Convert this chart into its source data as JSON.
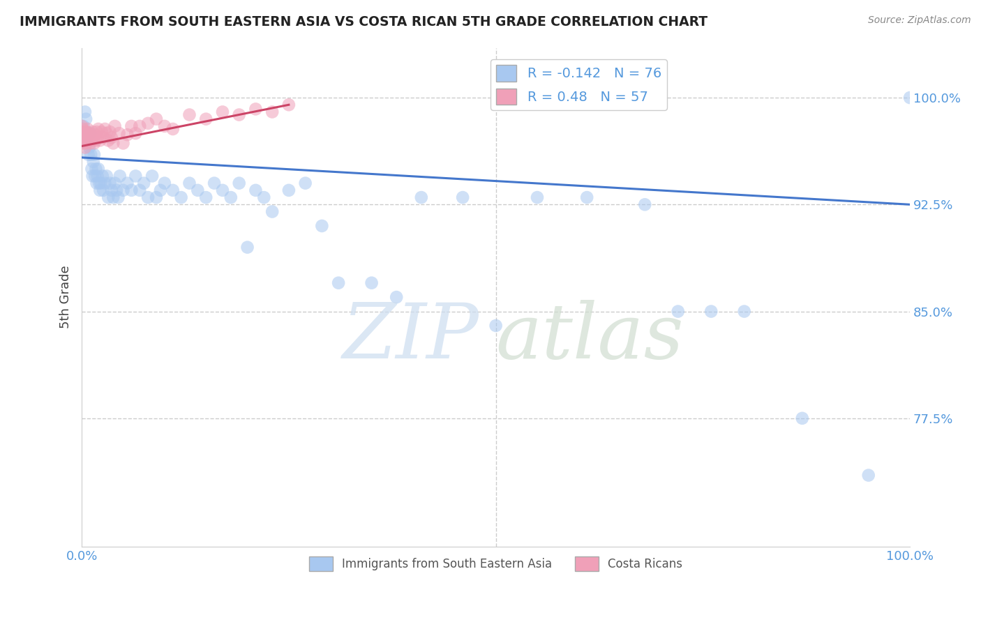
{
  "title": "IMMIGRANTS FROM SOUTH EASTERN ASIA VS COSTA RICAN 5TH GRADE CORRELATION CHART",
  "source": "Source: ZipAtlas.com",
  "ylabel": "5th Grade",
  "legend_blue_label": "Immigrants from South Eastern Asia",
  "legend_pink_label": "Costa Ricans",
  "R_blue": -0.142,
  "N_blue": 76,
  "R_pink": 0.48,
  "N_pink": 57,
  "blue_color": "#a8c8f0",
  "pink_color": "#f0a0b8",
  "blue_line_color": "#4477cc",
  "pink_line_color": "#cc4466",
  "tick_color": "#5599dd",
  "grid_color": "#cccccc",
  "xlim": [
    0.0,
    1.0
  ],
  "ylim": [
    0.685,
    1.035
  ],
  "ytick_vals": [
    0.775,
    0.85,
    0.925,
    1.0
  ],
  "ytick_labels": [
    "77.5%",
    "85.0%",
    "92.5%",
    "100.0%"
  ],
  "blue_line_x0": 0.0,
  "blue_line_y0": 0.958,
  "blue_line_x1": 1.0,
  "blue_line_y1": 0.925,
  "pink_line_x0": 0.0,
  "pink_line_y0": 0.966,
  "pink_line_x1": 0.25,
  "pink_line_y1": 0.995,
  "blue_scatter_x": [
    0.002,
    0.003,
    0.004,
    0.005,
    0.006,
    0.007,
    0.008,
    0.009,
    0.01,
    0.011,
    0.012,
    0.013,
    0.014,
    0.015,
    0.016,
    0.017,
    0.018,
    0.019,
    0.02,
    0.021,
    0.022,
    0.023,
    0.025,
    0.026,
    0.028,
    0.03,
    0.032,
    0.034,
    0.036,
    0.038,
    0.04,
    0.042,
    0.044,
    0.046,
    0.05,
    0.055,
    0.06,
    0.065,
    0.07,
    0.075,
    0.08,
    0.085,
    0.09,
    0.095,
    0.1,
    0.11,
    0.12,
    0.13,
    0.14,
    0.15,
    0.16,
    0.17,
    0.18,
    0.19,
    0.2,
    0.21,
    0.22,
    0.23,
    0.25,
    0.27,
    0.29,
    0.31,
    0.35,
    0.38,
    0.41,
    0.46,
    0.5,
    0.55,
    0.61,
    0.68,
    0.72,
    0.76,
    0.8,
    0.87,
    0.95,
    1.0
  ],
  "blue_scatter_y": [
    0.98,
    0.975,
    0.99,
    0.985,
    0.97,
    0.975,
    0.96,
    0.965,
    0.975,
    0.96,
    0.95,
    0.945,
    0.955,
    0.96,
    0.945,
    0.95,
    0.94,
    0.945,
    0.95,
    0.94,
    0.935,
    0.94,
    0.945,
    0.935,
    0.94,
    0.945,
    0.93,
    0.94,
    0.935,
    0.93,
    0.94,
    0.935,
    0.93,
    0.945,
    0.935,
    0.94,
    0.935,
    0.945,
    0.935,
    0.94,
    0.93,
    0.945,
    0.93,
    0.935,
    0.94,
    0.935,
    0.93,
    0.94,
    0.935,
    0.93,
    0.94,
    0.935,
    0.93,
    0.94,
    0.895,
    0.935,
    0.93,
    0.92,
    0.935,
    0.94,
    0.91,
    0.87,
    0.87,
    0.86,
    0.93,
    0.93,
    0.84,
    0.93,
    0.93,
    0.925,
    0.85,
    0.85,
    0.85,
    0.775,
    0.735,
    1.0
  ],
  "pink_scatter_x": [
    0.0,
    0.0,
    0.001,
    0.001,
    0.002,
    0.002,
    0.003,
    0.003,
    0.004,
    0.004,
    0.005,
    0.005,
    0.006,
    0.006,
    0.007,
    0.007,
    0.008,
    0.009,
    0.01,
    0.01,
    0.011,
    0.012,
    0.013,
    0.014,
    0.015,
    0.016,
    0.017,
    0.018,
    0.019,
    0.02,
    0.022,
    0.024,
    0.026,
    0.028,
    0.03,
    0.032,
    0.034,
    0.036,
    0.038,
    0.04,
    0.045,
    0.05,
    0.055,
    0.06,
    0.065,
    0.07,
    0.08,
    0.09,
    0.1,
    0.11,
    0.13,
    0.15,
    0.17,
    0.19,
    0.21,
    0.23,
    0.25
  ],
  "pink_scatter_y": [
    0.975,
    0.98,
    0.972,
    0.978,
    0.968,
    0.975,
    0.97,
    0.976,
    0.965,
    0.972,
    0.968,
    0.974,
    0.97,
    0.976,
    0.972,
    0.978,
    0.975,
    0.97,
    0.972,
    0.968,
    0.974,
    0.97,
    0.976,
    0.972,
    0.968,
    0.974,
    0.97,
    0.976,
    0.972,
    0.978,
    0.97,
    0.976,
    0.972,
    0.978,
    0.975,
    0.97,
    0.976,
    0.972,
    0.968,
    0.98,
    0.975,
    0.968,
    0.974,
    0.98,
    0.975,
    0.98,
    0.982,
    0.985,
    0.98,
    0.978,
    0.988,
    0.985,
    0.99,
    0.988,
    0.992,
    0.99,
    0.995
  ]
}
